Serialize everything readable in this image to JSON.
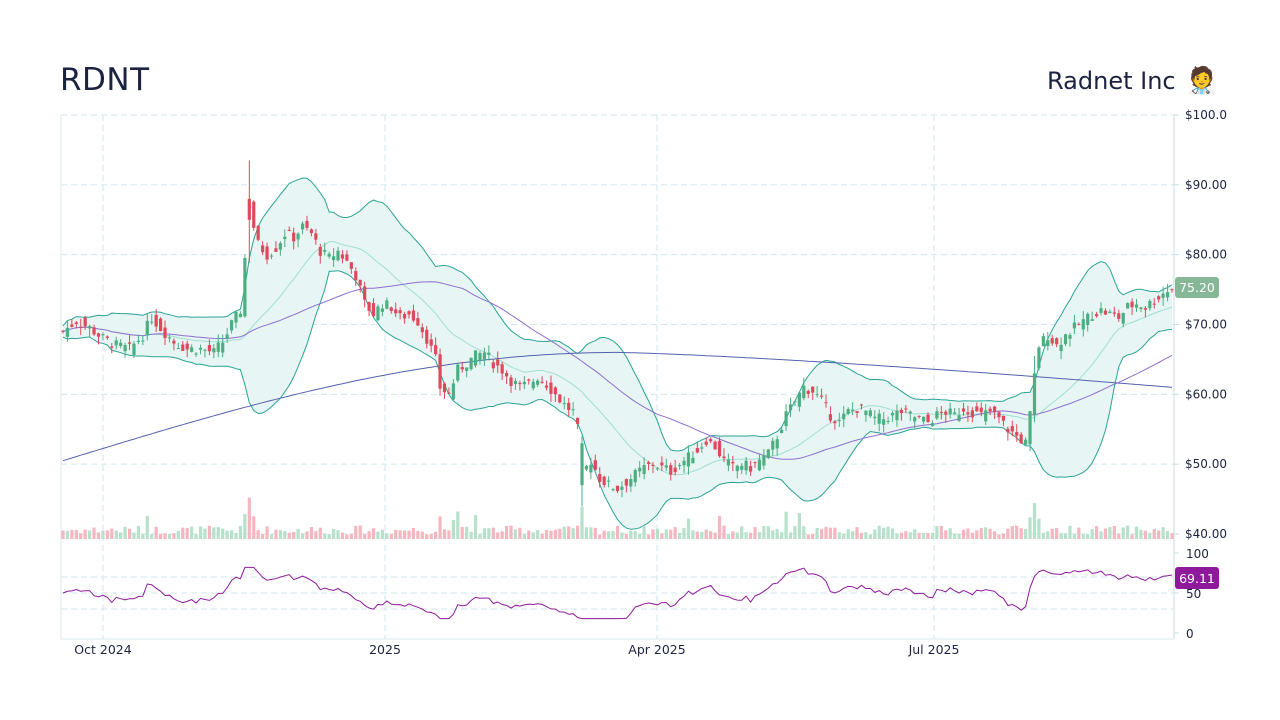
{
  "header": {
    "ticker": "RDNT",
    "company": "Radnet Inc",
    "company_icon": "health-worker-emoji",
    "company_emoji": "🧑‍⚕️"
  },
  "colors": {
    "up": "#4caf82",
    "down": "#e0485b",
    "up_volume": "#b7e1cb",
    "down_volume": "#f6b6c0",
    "band_line": "#2aa394",
    "band_fill": "#e7f5f4",
    "band_mid": "#9edfd2",
    "sma_fast": "#8e6fd0",
    "sma_slow": "#5560b0",
    "rsi": "#8e1a9b",
    "grid": "#cfe6ee",
    "price_badge": "#86b897",
    "rsi_badge": "#8e1a9b"
  },
  "chart_data": {
    "type": "candlestick",
    "title": "RDNT",
    "subtitle": "Radnet Inc",
    "y_axis": {
      "ticks": [
        "$100.0",
        "$90.00",
        "$80.00",
        "$70.00",
        "$60.00",
        "$50.00",
        "$40.00"
      ],
      "tick_values": [
        100,
        90,
        80,
        70,
        60,
        50,
        40
      ],
      "range": [
        40,
        100
      ],
      "position": "right"
    },
    "x_axis": {
      "ticks": [
        "Oct 2024",
        "2025",
        "Apr 2025",
        "Jul 2025"
      ],
      "range": [
        "2024-09",
        "2025-09"
      ]
    },
    "last_price": "75.20",
    "rsi": {
      "label_ticks": [
        "100",
        "50",
        "0"
      ],
      "last_value": "69.11",
      "levels": [
        70,
        50,
        30
      ]
    },
    "indicators": [
      "Bollinger Bands (20)",
      "SMA 50",
      "SMA 200",
      "Volume",
      "RSI 14"
    ],
    "price_path": [
      [
        0,
        69
      ],
      [
        6,
        70.5
      ],
      [
        12,
        69.5
      ],
      [
        18,
        68
      ],
      [
        24,
        67
      ],
      [
        30,
        66.5
      ],
      [
        36,
        68.5
      ],
      [
        40,
        71
      ],
      [
        44,
        69.5
      ],
      [
        50,
        67.5
      ],
      [
        56,
        66.5
      ],
      [
        62,
        66.5
      ],
      [
        68,
        66
      ],
      [
        72,
        67.5
      ],
      [
        76,
        70
      ],
      [
        80,
        72
      ],
      [
        84,
        87
      ],
      [
        86,
        84
      ],
      [
        88,
        81.5
      ],
      [
        92,
        80
      ],
      [
        96,
        81
      ],
      [
        100,
        83
      ],
      [
        104,
        82.5
      ],
      [
        108,
        84
      ],
      [
        112,
        83
      ],
      [
        116,
        80.5
      ],
      [
        120,
        79.5
      ],
      [
        124,
        80.5
      ],
      [
        128,
        79
      ],
      [
        132,
        77
      ],
      [
        136,
        73
      ],
      [
        140,
        71.5
      ],
      [
        144,
        73
      ],
      [
        148,
        72.5
      ],
      [
        152,
        71
      ],
      [
        156,
        71.5
      ],
      [
        160,
        70.5
      ],
      [
        164,
        68
      ],
      [
        168,
        65
      ],
      [
        170,
        61
      ],
      [
        174,
        60
      ],
      [
        178,
        63.5
      ],
      [
        182,
        64.5
      ],
      [
        186,
        65.5
      ],
      [
        190,
        66
      ],
      [
        194,
        64.5
      ],
      [
        198,
        63.5
      ],
      [
        202,
        62
      ],
      [
        206,
        61
      ],
      [
        210,
        61.5
      ],
      [
        214,
        62.5
      ],
      [
        218,
        61.5
      ],
      [
        222,
        60
      ],
      [
        226,
        58.5
      ],
      [
        230,
        57.5
      ],
      [
        232,
        55
      ],
      [
        234,
        48.5
      ],
      [
        238,
        50.5
      ],
      [
        242,
        48
      ],
      [
        246,
        47
      ],
      [
        250,
        46.5
      ],
      [
        254,
        47.5
      ],
      [
        258,
        48.5
      ],
      [
        262,
        49.5
      ],
      [
        266,
        50
      ],
      [
        270,
        49.5
      ],
      [
        274,
        49
      ],
      [
        278,
        50
      ],
      [
        282,
        51
      ],
      [
        286,
        52
      ],
      [
        290,
        53.5
      ],
      [
        294,
        52.5
      ],
      [
        298,
        50.5
      ],
      [
        302,
        49.5
      ],
      [
        306,
        50
      ],
      [
        310,
        49.5
      ],
      [
        314,
        50.5
      ],
      [
        318,
        51.5
      ],
      [
        322,
        54
      ],
      [
        326,
        57
      ],
      [
        330,
        59
      ],
      [
        334,
        61
      ],
      [
        338,
        60.5
      ],
      [
        342,
        59
      ],
      [
        346,
        57
      ],
      [
        350,
        56
      ],
      [
        354,
        57.5
      ],
      [
        358,
        58
      ],
      [
        362,
        57.5
      ],
      [
        366,
        56.5
      ],
      [
        370,
        56.5
      ],
      [
        374,
        57
      ],
      [
        378,
        57.5
      ],
      [
        382,
        57
      ],
      [
        386,
        56.5
      ],
      [
        390,
        56
      ],
      [
        394,
        57
      ],
      [
        398,
        57.5
      ],
      [
        402,
        57
      ],
      [
        406,
        58
      ],
      [
        410,
        57.5
      ],
      [
        414,
        57
      ],
      [
        418,
        57.5
      ],
      [
        422,
        56.5
      ],
      [
        426,
        55
      ],
      [
        430,
        54
      ],
      [
        434,
        53
      ],
      [
        436,
        57
      ],
      [
        438,
        63
      ],
      [
        440,
        67
      ],
      [
        444,
        68.5
      ],
      [
        448,
        67
      ],
      [
        452,
        68.5
      ],
      [
        456,
        69.5
      ],
      [
        460,
        70.5
      ],
      [
        464,
        71.5
      ],
      [
        468,
        72
      ],
      [
        472,
        71.5
      ],
      [
        476,
        71
      ],
      [
        480,
        72.5
      ],
      [
        484,
        73
      ],
      [
        488,
        72.5
      ],
      [
        492,
        73.5
      ],
      [
        496,
        74.5
      ],
      [
        500,
        75.2
      ]
    ],
    "notes": "Approx. 250 daily candles Sep 2024 - Sep 2025; price_path is [bar_index, close] keypoints read from the chart (interpolated)."
  }
}
